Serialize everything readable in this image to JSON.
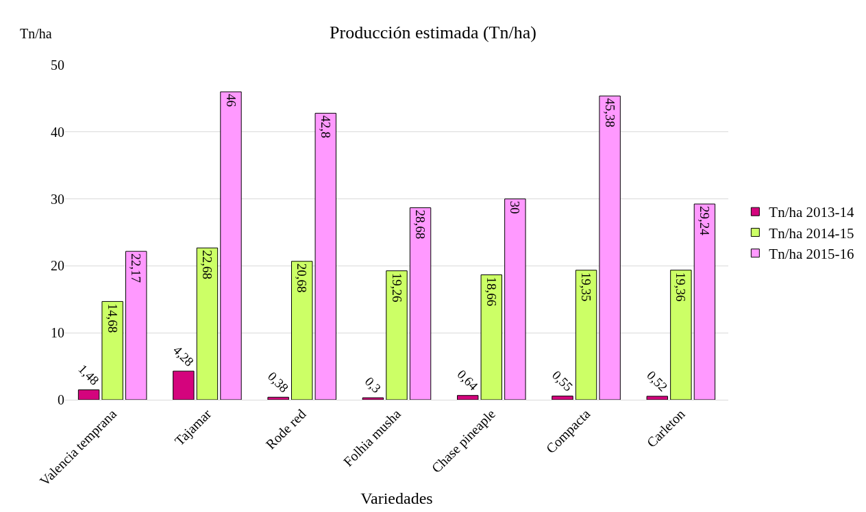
{
  "chart_data": {
    "type": "bar",
    "title": "Producción estimada (Tn/ha)",
    "xlabel": "Variedades",
    "ylabel": "Tn/ha",
    "categories": [
      "Valencia temprana",
      "Tajamar",
      "Rode red",
      "Folhia musha",
      "Chase pineaple",
      "Compacta",
      "Carleton"
    ],
    "series": [
      {
        "name": "Tn/ha 2013-14",
        "color": "#d4047d",
        "values": [
          1.48,
          4.28,
          0.38,
          0.3,
          0.64,
          0.55,
          0.52
        ],
        "value_labels": [
          "1,48",
          "4,28",
          "0,38",
          "0,3",
          "0,64",
          "0,55",
          "0,52"
        ]
      },
      {
        "name": "Tn/ha 2014-15",
        "color": "#ccff66",
        "values": [
          14.68,
          22.68,
          20.68,
          19.26,
          18.66,
          19.35,
          19.36
        ],
        "value_labels": [
          "14,68",
          "22,68",
          "20,68",
          "19,26",
          "18,66",
          "19,35",
          "19,36"
        ]
      },
      {
        "name": "Tn/ha 2015-16",
        "color": "#ff99ff",
        "values": [
          22.17,
          46,
          42.8,
          28.68,
          30,
          45.38,
          29.24
        ],
        "value_labels": [
          "22,17",
          "46",
          "42,8",
          "28,68",
          "30",
          "45,38",
          "29,24"
        ]
      }
    ],
    "ylim": [
      0,
      50
    ],
    "yticks": [
      0,
      10,
      20,
      30,
      40,
      50
    ],
    "grid": "y",
    "legend": "right"
  }
}
